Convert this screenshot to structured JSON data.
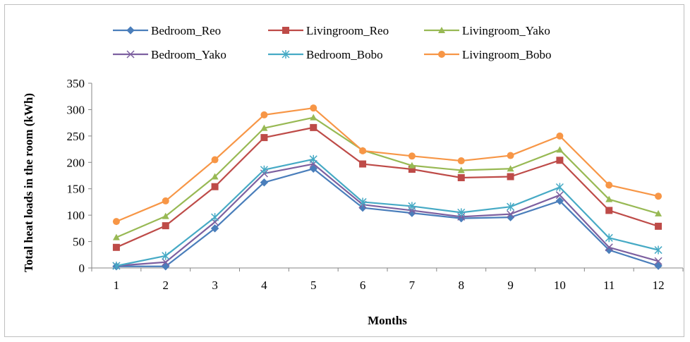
{
  "chart_data": {
    "type": "line",
    "title": "",
    "xlabel": "Months",
    "ylabel": "Total heat loads in the room (kWh)",
    "x": [
      1,
      2,
      3,
      4,
      5,
      6,
      7,
      8,
      9,
      10,
      11,
      12
    ],
    "ylim": [
      0,
      350
    ],
    "yticks": [
      0,
      50,
      100,
      150,
      200,
      250,
      300,
      350
    ],
    "grid": false,
    "legend_position": "top",
    "series": [
      {
        "name": "Bedroom_Reo",
        "color": "#4a7ebb",
        "marker": "diamond",
        "values": [
          3,
          3,
          75,
          162,
          188,
          114,
          104,
          94,
          96,
          127,
          34,
          4
        ]
      },
      {
        "name": "Livingroom_Reo",
        "color": "#be4b48",
        "marker": "square",
        "values": [
          39,
          80,
          154,
          247,
          266,
          197,
          187,
          171,
          173,
          204,
          109,
          79
        ]
      },
      {
        "name": "Livingroom_Yako",
        "color": "#98b954",
        "marker": "triangle",
        "values": [
          58,
          98,
          173,
          265,
          285,
          223,
          194,
          185,
          188,
          224,
          130,
          103
        ]
      },
      {
        "name": "Bedroom_Yako",
        "color": "#7d60a0",
        "marker": "x",
        "values": [
          4,
          11,
          87,
          179,
          197,
          120,
          109,
          97,
          102,
          138,
          39,
          13
        ]
      },
      {
        "name": "Bedroom_Bobo",
        "color": "#46aac5",
        "marker": "star",
        "values": [
          4,
          23,
          96,
          186,
          206,
          125,
          117,
          105,
          116,
          153,
          57,
          34
        ]
      },
      {
        "name": "Livingroom_Bobo",
        "color": "#f79646",
        "marker": "circle",
        "values": [
          88,
          127,
          205,
          290,
          303,
          222,
          212,
          203,
          213,
          250,
          157,
          136
        ]
      }
    ]
  }
}
